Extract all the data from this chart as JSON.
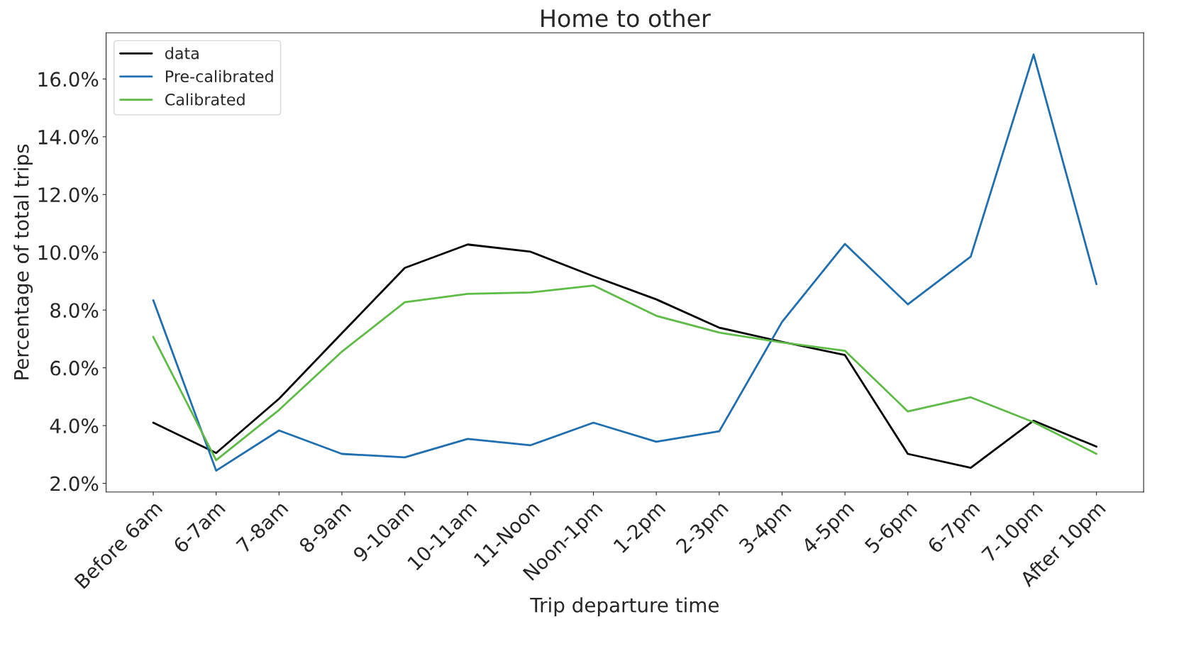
{
  "chart_data": {
    "type": "line",
    "title": "Home to other",
    "xlabel": "Trip departure time",
    "ylabel": "Percentage of total trips",
    "categories": [
      "Before 6am",
      "6-7am",
      "7-8am",
      "8-9am",
      "9-10am",
      "10-11am",
      "11-Noon",
      "Noon-1pm",
      "1-2pm",
      "2-3pm",
      "3-4pm",
      "4-5pm",
      "5-6pm",
      "6-7pm",
      "7-10pm",
      "After 10pm"
    ],
    "series": [
      {
        "name": "data",
        "color": "#000000",
        "values": [
          4.1,
          3.05,
          4.93,
          7.2,
          9.46,
          10.27,
          10.02,
          9.17,
          8.37,
          7.39,
          6.9,
          6.44,
          3.02,
          2.54,
          4.17,
          3.27
        ]
      },
      {
        "name": "Pre-calibrated",
        "color": "#1f6fb0",
        "values": [
          8.34,
          2.44,
          3.83,
          3.02,
          2.9,
          3.54,
          3.32,
          4.1,
          3.44,
          3.8,
          7.59,
          10.29,
          8.2,
          9.85,
          16.85,
          8.9
        ]
      },
      {
        "name": "Calibrated",
        "color": "#5dbb46",
        "values": [
          7.07,
          2.8,
          4.54,
          6.56,
          8.27,
          8.56,
          8.61,
          8.85,
          7.8,
          7.22,
          6.88,
          6.59,
          4.49,
          4.98,
          4.12,
          3.02
        ]
      }
    ],
    "ylim": [
      1.7,
      17.6
    ],
    "yticks": [
      {
        "value": 2,
        "label": "2.0%"
      },
      {
        "value": 4,
        "label": "4.0%"
      },
      {
        "value": 6,
        "label": "6.0%"
      },
      {
        "value": 8,
        "label": "8.0%"
      },
      {
        "value": 10,
        "label": "10.0%"
      },
      {
        "value": 12,
        "label": "12.0%"
      },
      {
        "value": 14,
        "label": "14.0%"
      },
      {
        "value": 16,
        "label": "16.0%"
      }
    ],
    "legend": "top left",
    "grid": false,
    "marker": "none",
    "line_style": "solid"
  }
}
